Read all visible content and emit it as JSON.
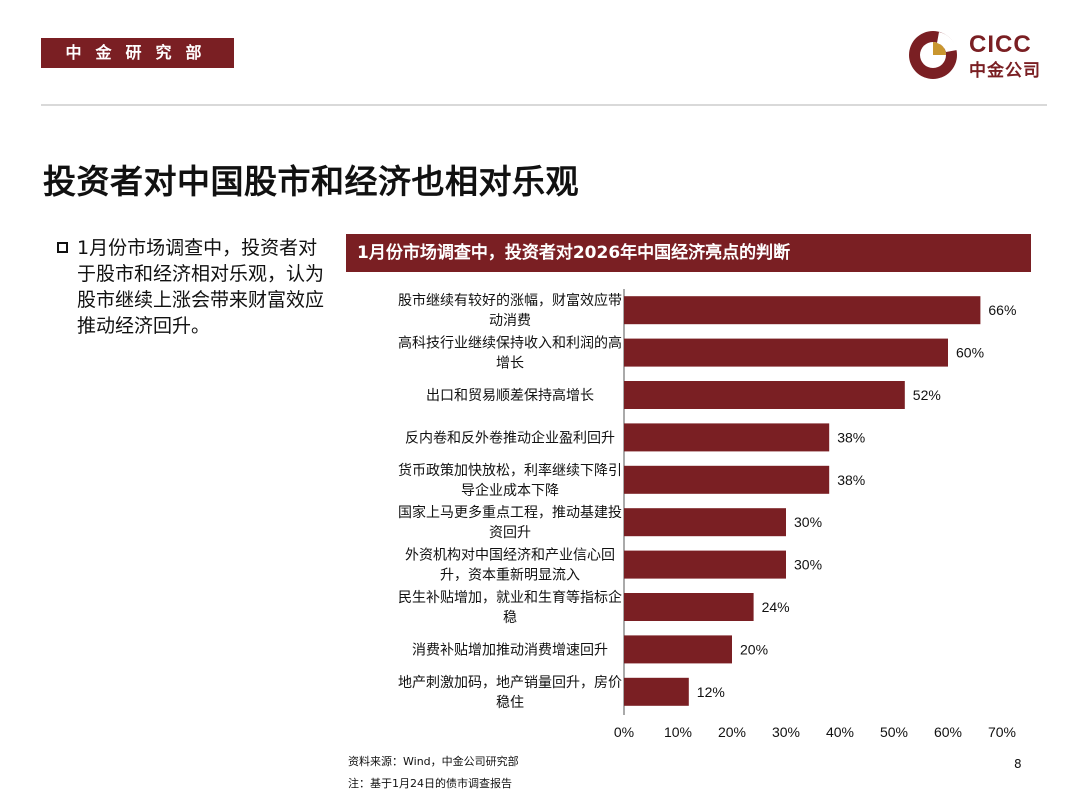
{
  "header": {
    "dept_label": "中金研究部",
    "logo_en": "CICC",
    "logo_cn": "中金公司",
    "brand_color": "#7a1f23"
  },
  "title": "投资者对中国股市和经济也相对乐观",
  "bullet": {
    "text": "1月份市场调查中，投资者对于股市和经济相对乐观，认为股市继续上涨会带来财富效应推动经济回升。"
  },
  "chart_header": "1月份市场调查中，投资者对2026年中国经济亮点的判断",
  "chart_data": {
    "type": "bar",
    "orientation": "horizontal",
    "title": "1月份市场调查中，投资者对2026年中国经济亮点的判断",
    "categories": [
      [
        "股市继续有较好的涨幅，财富效应带",
        "动消费"
      ],
      [
        "高科技行业继续保持收入和利润的高",
        "增长"
      ],
      [
        "出口和贸易顺差保持高增长"
      ],
      [
        "反内卷和反外卷推动企业盈利回升"
      ],
      [
        "货币政策加快放松，利率继续下降引",
        "导企业成本下降"
      ],
      [
        "国家上马更多重点工程，推动基建投",
        "资回升"
      ],
      [
        "外资机构对中国经济和产业信心回",
        "升，资本重新明显流入"
      ],
      [
        "民生补贴增加，就业和生育等指标企",
        "稳"
      ],
      [
        "消费补贴增加推动消费增速回升"
      ],
      [
        "地产刺激加码，地产销量回升，房价",
        "稳住"
      ]
    ],
    "values": [
      66,
      60,
      52,
      38,
      38,
      30,
      30,
      24,
      20,
      12
    ],
    "value_labels": [
      "66%",
      "60%",
      "52%",
      "38%",
      "38%",
      "30%",
      "30%",
      "24%",
      "20%",
      "12%"
    ],
    "xlim": [
      0,
      70
    ],
    "xticks": [
      "0%",
      "10%",
      "20%",
      "30%",
      "40%",
      "50%",
      "60%",
      "70%"
    ],
    "bar_color": "#7a1f23",
    "grid": false,
    "legend": false
  },
  "footer": {
    "source": "资料来源：Wind，中金公司研究部",
    "note": "注：基于1月24日的债市调查报告",
    "page": "8"
  }
}
